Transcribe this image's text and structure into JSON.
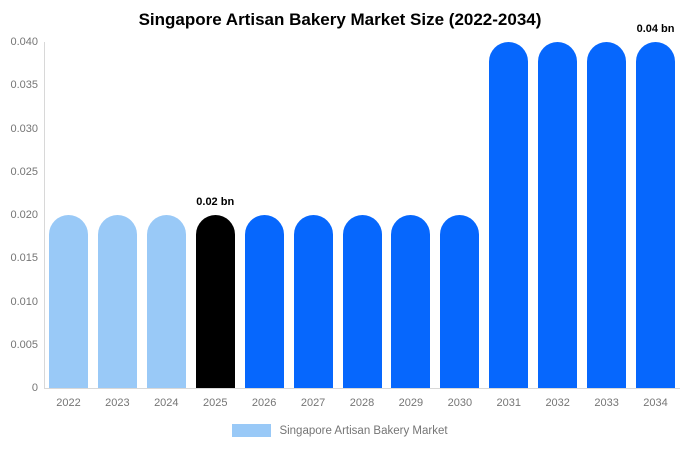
{
  "chart_data": {
    "type": "bar",
    "title": "Singapore Artisan Bakery Market Size (2022-2034)",
    "categories": [
      "2022",
      "2023",
      "2024",
      "2025",
      "2026",
      "2027",
      "2028",
      "2029",
      "2030",
      "2031",
      "2032",
      "2033",
      "2034"
    ],
    "series": [
      {
        "name": "Singapore Artisan Bakery Market",
        "values": [
          0.02,
          0.02,
          0.02,
          0.02,
          0.02,
          0.02,
          0.02,
          0.02,
          0.02,
          0.04,
          0.04,
          0.04,
          0.04
        ]
      }
    ],
    "bar_color_keys": [
      "lightblue",
      "lightblue",
      "lightblue",
      "black",
      "blue",
      "blue",
      "blue",
      "blue",
      "blue",
      "blue",
      "blue",
      "blue",
      "blue"
    ],
    "palette": {
      "lightblue": "#99C9F7",
      "blue": "#0667FD",
      "black": "#000000"
    },
    "annotations": [
      {
        "text": "0.02 bn",
        "category": "2025"
      },
      {
        "text": "0.04 bn",
        "category": "2034"
      }
    ],
    "xlabel": "",
    "ylabel": "",
    "ylim": [
      0,
      0.04
    ],
    "yticks": [
      {
        "value": 0,
        "label": "0"
      },
      {
        "value": 0.005,
        "label": "0.005"
      },
      {
        "value": 0.01,
        "label": "0.010"
      },
      {
        "value": 0.015,
        "label": "0.015"
      },
      {
        "value": 0.02,
        "label": "0.020"
      },
      {
        "value": 0.025,
        "label": "0.025"
      },
      {
        "value": 0.03,
        "label": "0.030"
      },
      {
        "value": 0.035,
        "label": "0.035"
      },
      {
        "value": 0.04,
        "label": "0.040"
      }
    ],
    "grid": false,
    "legend": {
      "position": "bottom",
      "items": [
        {
          "label": "Singapore Artisan Bakery Market",
          "swatch_color": "#99C9F7"
        }
      ]
    }
  },
  "colors": {
    "background": "#FFFFFF",
    "axis_line": "#D8D8D8",
    "tick_text": "#757575",
    "legend_text": "#757575",
    "title_text": "#000000",
    "annotation_text": "#000000"
  }
}
